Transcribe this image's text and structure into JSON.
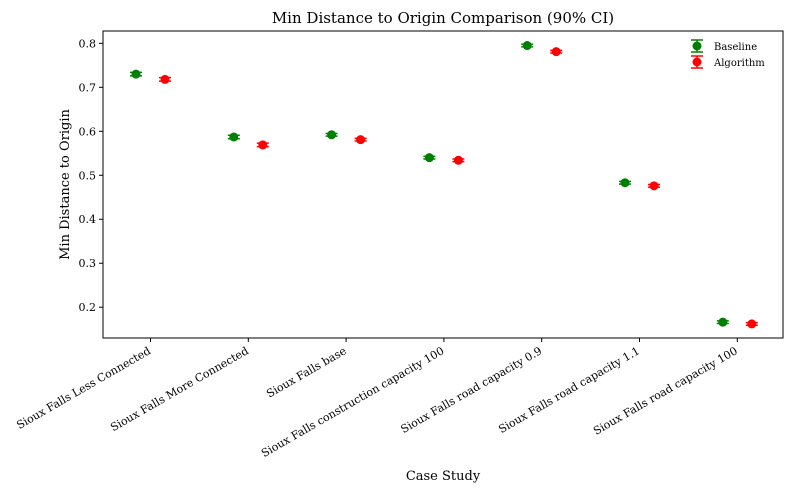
{
  "chart_data": {
    "type": "scatter",
    "title": "Min Distance to Origin Comparison (90% CI)",
    "xlabel": "Case Study",
    "ylabel": "Min Distance to Origin",
    "categories": [
      "Sioux Falls Less Connected",
      "Sioux Falls More Connected",
      "Sioux Falls base",
      "Sioux Falls construction capacity 100",
      "Sioux Falls road capacity 0.9",
      "Sioux Falls road capacity 1.1",
      "Sioux Falls road capacity 100"
    ],
    "series": [
      {
        "name": "Baseline",
        "color": "#008000",
        "values": [
          0.73,
          0.587,
          0.592,
          0.54,
          0.795,
          0.483,
          0.166
        ],
        "ci_halfwidth": [
          0.004,
          0.004,
          0.003,
          0.003,
          0.003,
          0.003,
          0.003
        ]
      },
      {
        "name": "Algorithm",
        "color": "#ff0000",
        "values": [
          0.718,
          0.569,
          0.581,
          0.534,
          0.781,
          0.476,
          0.162
        ],
        "ci_halfwidth": [
          0.004,
          0.004,
          0.003,
          0.003,
          0.003,
          0.003,
          0.003
        ]
      }
    ],
    "yticks": [
      0.2,
      0.3,
      0.4,
      0.5,
      0.6,
      0.7,
      0.8
    ],
    "ytick_labels": [
      "0.2",
      "0.3",
      "0.4",
      "0.5",
      "0.6",
      "0.7",
      "0.8"
    ],
    "ylim": [
      0.13,
      0.828
    ],
    "grid": false,
    "legend_position": "top-right"
  }
}
